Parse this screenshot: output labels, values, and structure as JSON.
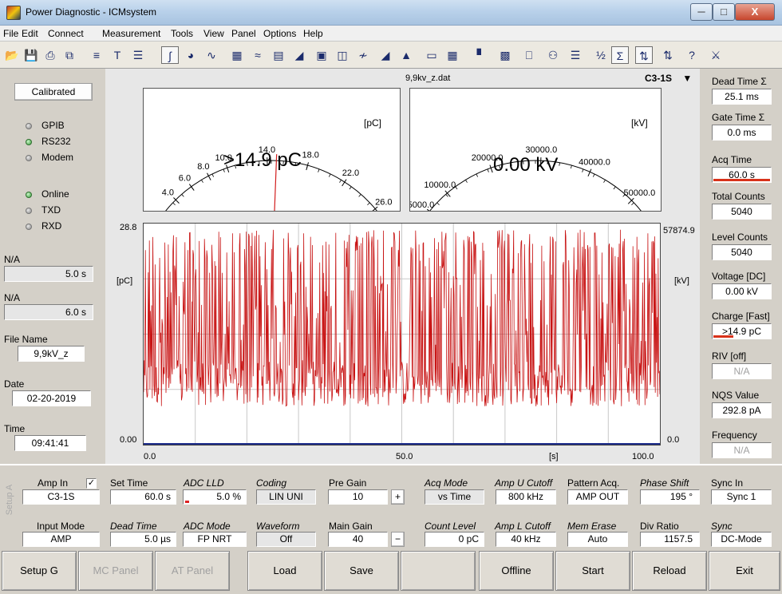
{
  "window": {
    "title": "Power Diagnostic - ICMsystem",
    "min": "─",
    "max": "□",
    "close": "X"
  },
  "menu": [
    "File",
    "Edit",
    "Connect",
    "Measurement",
    "Tools",
    "View",
    "Panel",
    "Options",
    "Help"
  ],
  "left": {
    "status_box": "Calibrated",
    "leds": [
      {
        "label": "GPIB",
        "on": false
      },
      {
        "label": "RS232",
        "on": true
      },
      {
        "label": "Modem",
        "on": false
      },
      {
        "label": "Online",
        "on": true
      },
      {
        "label": "TXD",
        "on": false
      },
      {
        "label": "RXD",
        "on": false
      }
    ],
    "na1_label": "N/A",
    "na1_value": "5.0 s",
    "na2_label": "N/A",
    "na2_value": "6.0 s",
    "file_label": "File Name",
    "file_value": "9,9kV_z",
    "date_label": "Date",
    "date_value": "02-20-2019",
    "time_label": "Time",
    "time_value": "09:41:41"
  },
  "main": {
    "file_title": "9,9kv_z.dat",
    "probe": "C3-1S",
    "probe_arrow": "▼",
    "gauge_pc": {
      "value_text": ">14.9 pC",
      "unit": "[pC]",
      "max": 28.8,
      "needle_value": 14.9,
      "ticks": [
        {
          "v": 0.0,
          "t": "0.0"
        },
        {
          "v": 4.0,
          "t": "4.0"
        },
        {
          "v": 6.0,
          "t": "6.0"
        },
        {
          "v": 8.0,
          "t": "8.0"
        },
        {
          "v": 10.0,
          "t": "10.0"
        },
        {
          "v": 14.0,
          "t": "14.0"
        },
        {
          "v": 18.0,
          "t": "18.0"
        },
        {
          "v": 22.0,
          "t": "22.0"
        },
        {
          "v": 26.0,
          "t": "26.0"
        },
        {
          "v": 28.8,
          "t": "28.8"
        }
      ]
    },
    "gauge_kv": {
      "value_text": "0.00 kV",
      "unit": "[kV]",
      "max": 57874.9,
      "needle_value": 0,
      "ticks": [
        {
          "v": 0,
          "t": "0.0"
        },
        {
          "v": 5000,
          "t": "5000.0"
        },
        {
          "v": 10000,
          "t": "10000.0"
        },
        {
          "v": 20000,
          "t": "20000.0"
        },
        {
          "v": 30000,
          "t": "30000.0"
        },
        {
          "v": 40000,
          "t": "40000.0"
        },
        {
          "v": 50000,
          "t": "50000.0"
        },
        {
          "v": 57874.9,
          "t": "57874.9"
        }
      ]
    },
    "chart": {
      "y_left_top": "28.8",
      "y_left_bottom": "0.00",
      "y_left_unit": "[pC]",
      "y_right_top": "57874.9",
      "y_right_bottom": "0.0",
      "y_right_unit": "[kV]",
      "x_labels": [
        "0.0",
        "50.0",
        "100.0"
      ],
      "x_unit": "[s]"
    }
  },
  "chart_data": {
    "type": "line",
    "xlabel": "[s]",
    "ylabel": "[pC]",
    "y2label": "[kV]",
    "xlim": [
      0,
      100
    ],
    "ylim": [
      0,
      28.8
    ],
    "y2lim": [
      0,
      57874.9
    ],
    "series": [
      {
        "color": "#c81414",
        "style": "dense oscillation between ~5 and ~28 pC over full time range",
        "values_pc_range": [
          5,
          28
        ]
      },
      {
        "color": "#1a2a8a",
        "values_kv": 0
      }
    ]
  },
  "right": [
    {
      "label": "Dead Time Σ",
      "value": "25.1 ms",
      "bar": 0
    },
    {
      "label": "Gate Time Σ",
      "value": "0.0 ms",
      "bar": 0
    },
    {
      "label": "Acq Time",
      "value": "60.0 s",
      "bar": 1.0
    },
    {
      "label": "Total Counts",
      "value": "5040",
      "bar": 0
    },
    {
      "label": "Level Counts",
      "value": "5040",
      "bar": 0
    },
    {
      "label": "Voltage [DC]",
      "value": "0.00 kV",
      "bar": 0
    },
    {
      "label": "Charge [Fast]",
      "value": ">14.9 pC",
      "bar": 0.35
    },
    {
      "label": "RIV [off]",
      "value": "N/A",
      "bar": 0,
      "dim": true
    },
    {
      "label": "NQS Value",
      "value": "292.8 pA",
      "bar": 0
    },
    {
      "label": "Frequency",
      "value": "N/A",
      "bar": 0,
      "dim": true
    }
  ],
  "setup": {
    "side_label": "Setup A",
    "amp_in_label": "Amp In",
    "amp_in_checked": "✓",
    "amp_in_value": "C3-1S",
    "input_mode_label": "Input Mode",
    "input_mode_value": "AMP",
    "set_time_label": "Set Time",
    "set_time_value": "60.0 s",
    "dead_time_label": "Dead Time",
    "dead_time_value": "5.0 µs",
    "adc_lld_label": "ADC LLD",
    "adc_lld_value": "5.0 %",
    "adc_mode_label": "ADC Mode",
    "adc_mode_value": "FP NRT",
    "coding_label": "Coding",
    "coding_value": "LIN UNI",
    "waveform_label": "Waveform",
    "waveform_value": "Off",
    "pre_gain_label": "Pre Gain",
    "pre_gain_value": "10",
    "pre_gain_btn": "+",
    "main_gain_label": "Main Gain",
    "main_gain_value": "40",
    "main_gain_btn": "−",
    "acq_mode_label": "Acq Mode",
    "acq_mode_value": "vs Time",
    "count_level_label": "Count Level",
    "count_level_value": "0 pC",
    "amp_u_label": "Amp U Cutoff",
    "amp_u_value": "800 kHz",
    "amp_l_label": "Amp L Cutoff",
    "amp_l_value": "40 kHz",
    "pattern_label": "Pattern Acq.",
    "pattern_value": "AMP OUT",
    "mem_erase_label": "Mem Erase",
    "mem_erase_value": "Auto",
    "phase_label": "Phase Shift",
    "phase_value": "195 °",
    "div_label": "Div Ratio",
    "div_value": "1157.5",
    "sync_in_label": "Sync In",
    "sync_in_value": "Sync 1",
    "sync_label": "Sync",
    "sync_value": "DC-Mode"
  },
  "buttons": [
    {
      "label": "Setup G",
      "enabled": true
    },
    {
      "label": "MC Panel",
      "enabled": false
    },
    {
      "label": "AT Panel",
      "enabled": false
    },
    {
      "label": "Load",
      "enabled": true
    },
    {
      "label": "Save",
      "enabled": true
    },
    {
      "label": "",
      "enabled": true
    },
    {
      "label": "Offline",
      "enabled": true
    },
    {
      "label": "Start",
      "enabled": true
    },
    {
      "label": "Reload",
      "enabled": true
    },
    {
      "label": "Exit",
      "enabled": true
    }
  ]
}
